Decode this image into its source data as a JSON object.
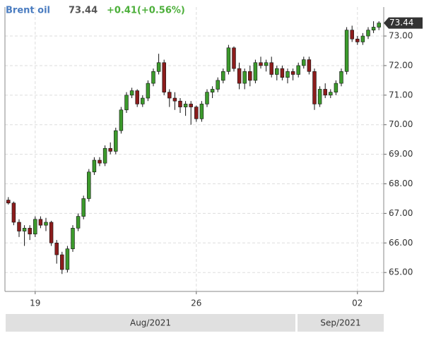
{
  "chart_data": {
    "type": "candlestick",
    "name": "Brent oil",
    "price": 73.44,
    "change": "+0.41(+0.56%)",
    "last_price": {
      "value": 73.44,
      "label": "73.44"
    },
    "up_color": "#3c9a2c",
    "down_color": "#8c1c1c",
    "categories": [
      null,
      null,
      null,
      null,
      null,
      "19",
      null,
      null,
      null,
      null,
      null,
      null,
      null,
      null,
      null,
      null,
      null,
      null,
      null,
      null,
      null,
      null,
      null,
      null,
      null,
      null,
      null,
      null,
      null,
      null,
      null,
      null,
      null,
      null,
      null,
      "26",
      null,
      null,
      null,
      null,
      null,
      null,
      null,
      null,
      null,
      null,
      null,
      null,
      null,
      null,
      null,
      null,
      null,
      null,
      null,
      null,
      null,
      null,
      null,
      null,
      null,
      null,
      null,
      null,
      null,
      "02",
      null,
      null,
      null,
      null
    ],
    "open": [
      67.45,
      67.35,
      66.7,
      66.4,
      66.5,
      66.3,
      66.8,
      66.6,
      66.7,
      66.0,
      65.6,
      65.1,
      65.8,
      66.5,
      66.9,
      67.5,
      68.4,
      68.8,
      68.7,
      69.2,
      69.1,
      69.8,
      70.5,
      71.0,
      71.15,
      70.7,
      70.9,
      71.4,
      71.8,
      72.1,
      71.1,
      70.9,
      70.8,
      70.6,
      70.7,
      70.6,
      70.2,
      70.7,
      71.1,
      71.2,
      71.5,
      71.8,
      72.6,
      71.9,
      71.4,
      71.8,
      71.5,
      72.1,
      72.0,
      72.1,
      71.7,
      71.9,
      71.6,
      71.8,
      71.7,
      72.0,
      72.2,
      71.8,
      70.7,
      71.2,
      71.0,
      71.1,
      71.4,
      71.8,
      73.2,
      72.9,
      72.8,
      73.0,
      73.2,
      73.3
    ],
    "high": [
      67.55,
      67.4,
      66.8,
      66.6,
      66.6,
      66.9,
      66.9,
      66.85,
      66.75,
      66.1,
      65.7,
      65.9,
      66.6,
      67.0,
      67.6,
      68.5,
      68.9,
      68.9,
      69.3,
      69.4,
      69.9,
      70.6,
      71.1,
      71.25,
      71.2,
      71.0,
      71.5,
      71.9,
      72.4,
      72.2,
      71.2,
      71.1,
      70.9,
      70.8,
      70.8,
      70.65,
      70.8,
      71.2,
      71.3,
      71.6,
      71.9,
      72.7,
      72.65,
      72.1,
      71.9,
      72.0,
      72.2,
      72.3,
      72.2,
      72.3,
      72.0,
      72.0,
      71.9,
      71.9,
      72.1,
      72.3,
      72.3,
      71.9,
      71.3,
      71.4,
      71.2,
      71.5,
      71.9,
      73.3,
      73.35,
      73.0,
      73.1,
      73.3,
      73.5,
      73.5
    ],
    "low": [
      67.3,
      66.6,
      66.2,
      65.9,
      66.1,
      66.2,
      66.5,
      66.4,
      65.9,
      65.3,
      64.95,
      65.0,
      65.7,
      66.4,
      66.8,
      67.4,
      68.3,
      68.6,
      68.6,
      69.0,
      69.0,
      69.7,
      70.4,
      70.9,
      70.6,
      70.6,
      70.8,
      71.3,
      71.7,
      71.0,
      70.6,
      70.5,
      70.4,
      70.3,
      70.0,
      70.1,
      70.1,
      70.6,
      70.9,
      71.1,
      71.4,
      71.7,
      71.8,
      71.2,
      71.2,
      71.3,
      71.4,
      71.9,
      71.8,
      71.6,
      71.5,
      71.5,
      71.4,
      71.5,
      71.6,
      71.9,
      71.7,
      70.5,
      70.6,
      70.9,
      70.9,
      71.0,
      71.3,
      71.7,
      72.8,
      72.7,
      72.7,
      72.9,
      73.1,
      73.2
    ],
    "close": [
      67.35,
      66.7,
      66.4,
      66.5,
      66.3,
      66.8,
      66.6,
      66.7,
      66.0,
      65.6,
      65.1,
      65.8,
      66.5,
      66.9,
      67.5,
      68.4,
      68.8,
      68.7,
      69.2,
      69.1,
      69.8,
      70.5,
      71.0,
      71.15,
      70.7,
      70.9,
      71.4,
      71.8,
      72.1,
      71.1,
      70.9,
      70.8,
      70.6,
      70.7,
      70.6,
      70.2,
      70.7,
      71.1,
      71.2,
      71.5,
      71.8,
      72.6,
      71.9,
      71.4,
      71.8,
      71.5,
      72.1,
      72.0,
      72.1,
      71.7,
      71.9,
      71.6,
      71.8,
      71.7,
      72.0,
      72.2,
      71.8,
      70.7,
      71.2,
      71.0,
      71.1,
      71.4,
      71.8,
      73.2,
      72.9,
      72.8,
      73.0,
      73.2,
      73.3,
      73.44
    ],
    "ylim": [
      64.36,
      73.98
    ],
    "yticks": [
      {
        "value": 65,
        "label": "65.00"
      },
      {
        "value": 66,
        "label": "66.00"
      },
      {
        "value": 67,
        "label": "67.00"
      },
      {
        "value": 68,
        "label": "68.00"
      },
      {
        "value": 69,
        "label": "69.00"
      },
      {
        "value": 70,
        "label": "70.00"
      },
      {
        "value": 71,
        "label": "71.00"
      },
      {
        "value": 72,
        "label": "72.00"
      },
      {
        "value": 73,
        "label": "73.00"
      }
    ],
    "periods": [
      "Aug/2021",
      "Sep/2021"
    ],
    "grid": true
  }
}
